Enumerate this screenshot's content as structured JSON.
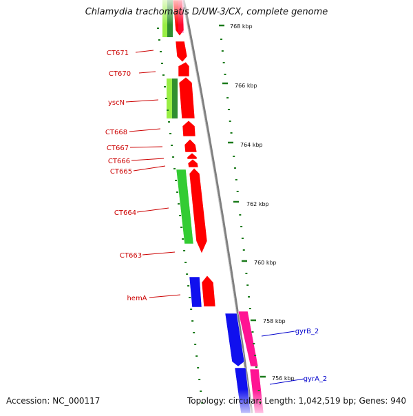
{
  "title": "Chlamydia trachomatis D/UW-3/CX, complete genome",
  "accession_text": "Accession: NC_000117",
  "summary_text": "Topology: circular; Length: 1,042,519 bp; Genes: 940",
  "colors": {
    "forward_cds": "#ff0000",
    "reverse_cds_green": "#33cc33",
    "reverse_cds_light": "#99ee44",
    "blue_feature": "#1010ee",
    "pink_feature": "#ff1493",
    "backbone": "#888888",
    "tick": "#1a7a1a",
    "left_labels": "#cc0000",
    "right_labels": "#0000cc"
  },
  "ticks": [
    {
      "label": "768 kbp"
    },
    {
      "label": "766 kbp"
    },
    {
      "label": "764 kbp"
    },
    {
      "label": "762 kbp"
    },
    {
      "label": "760 kbp"
    },
    {
      "label": "758 kbp"
    },
    {
      "label": "756 kbp"
    }
  ],
  "left_labels": [
    {
      "text": "CT671"
    },
    {
      "text": "CT670"
    },
    {
      "text": "yscN"
    },
    {
      "text": "CT668"
    },
    {
      "text": "CT667"
    },
    {
      "text": "CT666"
    },
    {
      "text": "CT665"
    },
    {
      "text": "CT664"
    },
    {
      "text": "CT663"
    },
    {
      "text": "hemA"
    }
  ],
  "right_labels": [
    {
      "text": "gyrB_2"
    },
    {
      "text": "gyrA_2"
    }
  ]
}
